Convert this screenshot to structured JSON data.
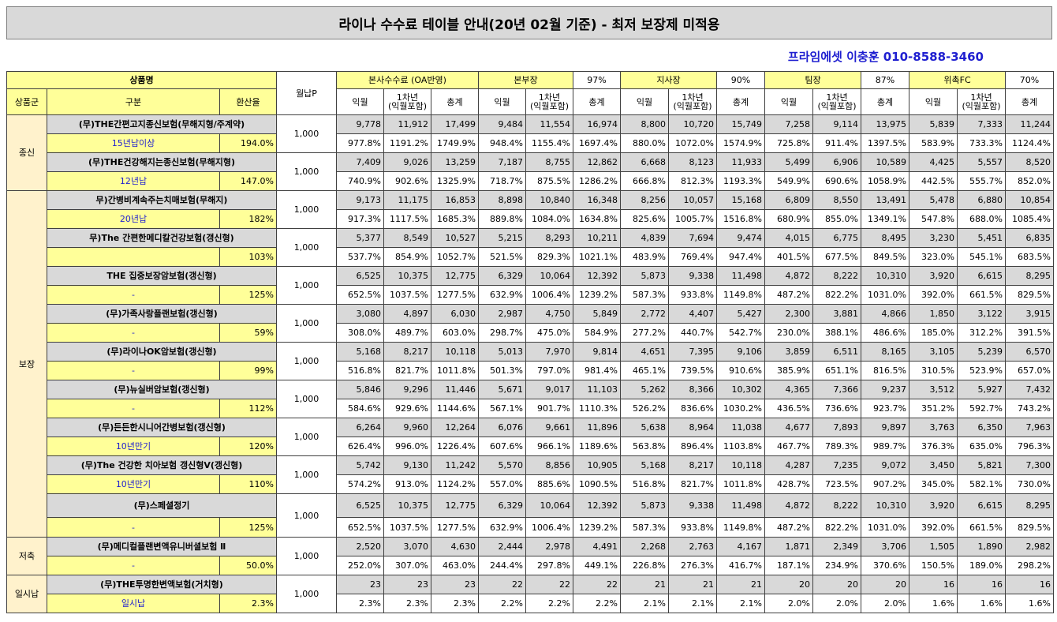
{
  "title": "라이나 수수료 테이블 안내(20년 02월 기준) - 최저 보장제 미적용",
  "contact": "프라임에셋 이충훈 010-8588-3460",
  "header": {
    "product_name": "상품명",
    "group": "상품군",
    "category": "구분",
    "refund_rate": "환산율",
    "monthly_premium": "월납P",
    "levels": [
      {
        "name": "본사수수료 (OA반영)",
        "pct": ""
      },
      {
        "name": "본부장",
        "pct": "97%"
      },
      {
        "name": "지사장",
        "pct": "90%"
      },
      {
        "name": "팀장",
        "pct": "87%"
      },
      {
        "name": "위촉FC",
        "pct": "70%"
      }
    ],
    "sub": [
      "익월",
      "1차년\n(익월포함)",
      "총계"
    ]
  },
  "groups": [
    {
      "name": "종신",
      "start": 0,
      "span": 2
    },
    {
      "name": "보장",
      "start": 2,
      "span": 9
    },
    {
      "name": "저축",
      "start": 11,
      "span": 1
    },
    {
      "name": "일시납",
      "start": 12,
      "span": 1
    }
  ],
  "rows": [
    {
      "name": "(무)THE간편고지종신보험(무해지형/주계약)",
      "period": "15년납이상",
      "rate": "194.0%",
      "premium": "1,000",
      "amounts": [
        "9,778",
        "11,912",
        "17,499",
        "9,484",
        "11,554",
        "16,974",
        "8,800",
        "10,720",
        "15,749",
        "7,258",
        "9,114",
        "13,975",
        "5,839",
        "7,333",
        "11,244"
      ],
      "pcts": [
        "977.8%",
        "1191.2%",
        "1749.9%",
        "948.4%",
        "1155.4%",
        "1697.4%",
        "880.0%",
        "1072.0%",
        "1574.9%",
        "725.8%",
        "911.4%",
        "1397.5%",
        "583.9%",
        "733.3%",
        "1124.4%"
      ]
    },
    {
      "name": "(무)THE건강해지는종신보험(무해지형)",
      "period": "12년납",
      "rate": "147.0%",
      "premium": "1,000",
      "amounts": [
        "7,409",
        "9,026",
        "13,259",
        "7,187",
        "8,755",
        "12,862",
        "6,668",
        "8,123",
        "11,933",
        "5,499",
        "6,906",
        "10,589",
        "4,425",
        "5,557",
        "8,520"
      ],
      "pcts": [
        "740.9%",
        "902.6%",
        "1325.9%",
        "718.7%",
        "875.5%",
        "1286.2%",
        "666.8%",
        "812.3%",
        "1193.3%",
        "549.9%",
        "690.6%",
        "1058.9%",
        "442.5%",
        "555.7%",
        "852.0%"
      ]
    },
    {
      "name": "무)간병비계속주는치매보험(무해지)",
      "period": "20년납",
      "rate": "182%",
      "premium": "1,000",
      "amounts": [
        "9,173",
        "11,175",
        "16,853",
        "8,898",
        "10,840",
        "16,348",
        "8,256",
        "10,057",
        "15,168",
        "6,809",
        "8,550",
        "13,491",
        "5,478",
        "6,880",
        "10,854"
      ],
      "pcts": [
        "917.3%",
        "1117.5%",
        "1685.3%",
        "889.8%",
        "1084.0%",
        "1634.8%",
        "825.6%",
        "1005.7%",
        "1516.8%",
        "680.9%",
        "855.0%",
        "1349.1%",
        "547.8%",
        "688.0%",
        "1085.4%"
      ]
    },
    {
      "name": "무)The 간편한메디칼건강보험(갱신형)",
      "period": "",
      "rate": "103%",
      "premium": "1,000",
      "amounts": [
        "5,377",
        "8,549",
        "10,527",
        "5,215",
        "8,293",
        "10,211",
        "4,839",
        "7,694",
        "9,474",
        "4,015",
        "6,775",
        "8,495",
        "3,230",
        "5,451",
        "6,835"
      ],
      "pcts": [
        "537.7%",
        "854.9%",
        "1052.7%",
        "521.5%",
        "829.3%",
        "1021.1%",
        "483.9%",
        "769.4%",
        "947.4%",
        "401.5%",
        "677.5%",
        "849.5%",
        "323.0%",
        "545.1%",
        "683.5%"
      ]
    },
    {
      "name": "THE 집중보장암보험(갱신형)",
      "period": "-",
      "rate": "125%",
      "premium": "1,000",
      "amounts": [
        "6,525",
        "10,375",
        "12,775",
        "6,329",
        "10,064",
        "12,392",
        "5,873",
        "9,338",
        "11,498",
        "4,872",
        "8,222",
        "10,310",
        "3,920",
        "6,615",
        "8,295"
      ],
      "pcts": [
        "652.5%",
        "1037.5%",
        "1277.5%",
        "632.9%",
        "1006.4%",
        "1239.2%",
        "587.3%",
        "933.8%",
        "1149.8%",
        "487.2%",
        "822.2%",
        "1031.0%",
        "392.0%",
        "661.5%",
        "829.5%"
      ]
    },
    {
      "name": "(무)가족사랑플랜보험(갱신형)",
      "period": "-",
      "rate": "59%",
      "premium": "1,000",
      "amounts": [
        "3,080",
        "4,897",
        "6,030",
        "2,987",
        "4,750",
        "5,849",
        "2,772",
        "4,407",
        "5,427",
        "2,300",
        "3,881",
        "4,866",
        "1,850",
        "3,122",
        "3,915"
      ],
      "pcts": [
        "308.0%",
        "489.7%",
        "603.0%",
        "298.7%",
        "475.0%",
        "584.9%",
        "277.2%",
        "440.7%",
        "542.7%",
        "230.0%",
        "388.1%",
        "486.6%",
        "185.0%",
        "312.2%",
        "391.5%"
      ]
    },
    {
      "name": "(무)라이나OK암보험(갱신형)",
      "period": "-",
      "rate": "99%",
      "premium": "1,000",
      "amounts": [
        "5,168",
        "8,217",
        "10,118",
        "5,013",
        "7,970",
        "9,814",
        "4,651",
        "7,395",
        "9,106",
        "3,859",
        "6,511",
        "8,165",
        "3,105",
        "5,239",
        "6,570"
      ],
      "pcts": [
        "516.8%",
        "821.7%",
        "1011.8%",
        "501.3%",
        "797.0%",
        "981.4%",
        "465.1%",
        "739.5%",
        "910.6%",
        "385.9%",
        "651.1%",
        "816.5%",
        "310.5%",
        "523.9%",
        "657.0%"
      ]
    },
    {
      "name": "(무)뉴실버암보험(갱신형)",
      "period": "-",
      "rate": "112%",
      "premium": "1,000",
      "amounts": [
        "5,846",
        "9,296",
        "11,446",
        "5,671",
        "9,017",
        "11,103",
        "5,262",
        "8,366",
        "10,302",
        "4,365",
        "7,366",
        "9,237",
        "3,512",
        "5,927",
        "7,432"
      ],
      "pcts": [
        "584.6%",
        "929.6%",
        "1144.6%",
        "567.1%",
        "901.7%",
        "1110.3%",
        "526.2%",
        "836.6%",
        "1030.2%",
        "436.5%",
        "736.6%",
        "923.7%",
        "351.2%",
        "592.7%",
        "743.2%"
      ]
    },
    {
      "name": "(무)든든한시니어간병보험(갱신형)",
      "period": "10년만기",
      "rate": "120%",
      "premium": "1,000",
      "amounts": [
        "6,264",
        "9,960",
        "12,264",
        "6,076",
        "9,661",
        "11,896",
        "5,638",
        "8,964",
        "11,038",
        "4,677",
        "7,893",
        "9,897",
        "3,763",
        "6,350",
        "7,963"
      ],
      "pcts": [
        "626.4%",
        "996.0%",
        "1226.4%",
        "607.6%",
        "966.1%",
        "1189.6%",
        "563.8%",
        "896.4%",
        "1103.8%",
        "467.7%",
        "789.3%",
        "989.7%",
        "376.3%",
        "635.0%",
        "796.3%"
      ]
    },
    {
      "name": "(무)The 건강한 치아보험 갱신형V(갱신형)",
      "period": "10년만기",
      "rate": "110%",
      "premium": "1,000",
      "amounts": [
        "5,742",
        "9,130",
        "11,242",
        "5,570",
        "8,856",
        "10,905",
        "5,168",
        "8,217",
        "10,118",
        "4,287",
        "7,235",
        "9,072",
        "3,450",
        "5,821",
        "7,300"
      ],
      "pcts": [
        "574.2%",
        "913.0%",
        "1124.2%",
        "557.0%",
        "885.6%",
        "1090.5%",
        "516.8%",
        "821.7%",
        "1011.8%",
        "428.7%",
        "723.5%",
        "907.2%",
        "345.0%",
        "582.1%",
        "730.0%"
      ]
    },
    {
      "name": "(무)스페셜정기",
      "period": "-",
      "rate": "125%",
      "premium": "1,000",
      "amounts": [
        "6,525",
        "10,375",
        "12,775",
        "6,329",
        "10,064",
        "12,392",
        "5,873",
        "9,338",
        "11,498",
        "4,872",
        "8,222",
        "10,310",
        "3,920",
        "6,615",
        "8,295"
      ],
      "pcts": [
        "652.5%",
        "1037.5%",
        "1277.5%",
        "632.9%",
        "1006.4%",
        "1239.2%",
        "587.3%",
        "933.8%",
        "1149.8%",
        "487.2%",
        "822.2%",
        "1031.0%",
        "392.0%",
        "661.5%",
        "829.5%"
      ]
    },
    {
      "name": "(무)메디컬플랜변액유니버셜보험 Ⅱ",
      "period": "-",
      "rate": "50.0%",
      "premium": "1,000",
      "amounts": [
        "2,520",
        "3,070",
        "4,630",
        "2,444",
        "2,978",
        "4,491",
        "2,268",
        "2,763",
        "4,167",
        "1,871",
        "2,349",
        "3,706",
        "1,505",
        "1,890",
        "2,982"
      ],
      "pcts": [
        "252.0%",
        "307.0%",
        "463.0%",
        "244.4%",
        "297.8%",
        "449.1%",
        "226.8%",
        "276.3%",
        "416.7%",
        "187.1%",
        "234.9%",
        "370.6%",
        "150.5%",
        "189.0%",
        "298.2%"
      ]
    },
    {
      "name": "(무)THE투명한변액보험(거치형)",
      "period": "일시납",
      "rate": "2.3%",
      "premium": "1,000",
      "amounts": [
        "23",
        "23",
        "23",
        "22",
        "22",
        "22",
        "21",
        "21",
        "21",
        "20",
        "20",
        "20",
        "16",
        "16",
        "16"
      ],
      "pcts": [
        "2.3%",
        "2.3%",
        "2.3%",
        "2.2%",
        "2.2%",
        "2.2%",
        "2.1%",
        "2.1%",
        "2.1%",
        "2.0%",
        "2.0%",
        "2.0%",
        "1.6%",
        "1.6%",
        "1.6%"
      ]
    }
  ],
  "colors": {
    "header_yellow": "#ffff99",
    "amount_gray": "#d9d9d9",
    "group_cream": "#fff2cc",
    "contact_blue": "#1f1fd0"
  }
}
